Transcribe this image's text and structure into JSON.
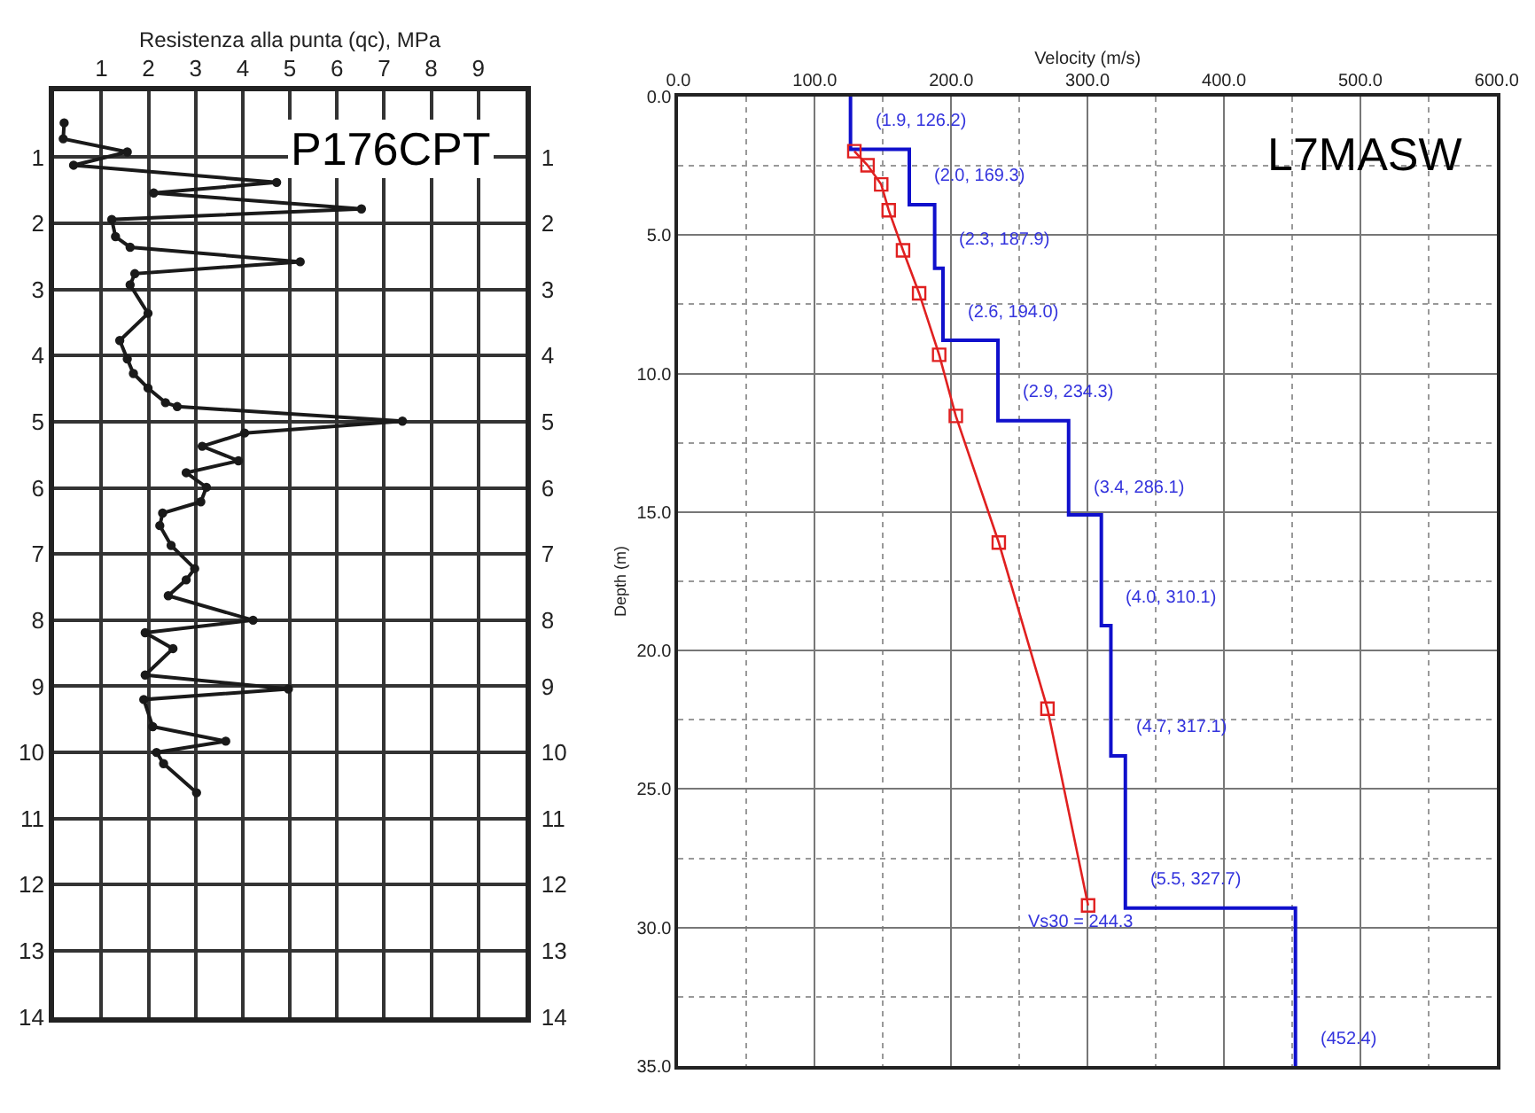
{
  "chart_data": [
    {
      "type": "line",
      "xlabel": "Resistenza alla punta (qc), MPa",
      "xlim": [
        0,
        10
      ],
      "xticks": [
        1,
        2,
        3,
        4,
        5,
        6,
        7,
        8,
        9
      ],
      "ylim": [
        14,
        0
      ],
      "yticks": [
        1,
        2,
        3,
        4,
        5,
        6,
        7,
        8,
        9,
        10,
        11,
        12,
        13,
        14
      ],
      "y2lim": [
        14,
        0
      ],
      "y2ticks": [
        1,
        2,
        3,
        4,
        5,
        6,
        7,
        8,
        9,
        10,
        11,
        12,
        13,
        14
      ],
      "grid": true,
      "annotations": [
        "P176CPT"
      ],
      "series": [
        {
          "color": "#1a1a1a",
          "marker": "circle",
          "line_style": "solid",
          "x": [
            0.21,
            0.19,
            1.55,
            0.41,
            4.72,
            2.11,
            6.52,
            1.22,
            1.3,
            1.61,
            5.22,
            1.71,
            1.61,
            1.99,
            1.39,
            1.55,
            1.68,
            1.99,
            2.36,
            2.61,
            7.39,
            4.04,
            3.14,
            3.91,
            2.8,
            3.23,
            3.11,
            2.3,
            2.24,
            2.48,
            2.98,
            2.8,
            2.42,
            4.22,
            1.93,
            2.52,
            1.93,
            4.97,
            1.9,
            2.09,
            3.64,
            2.17,
            2.32,
            3.02
          ],
          "values": [
            0.48,
            0.72,
            0.92,
            1.12,
            1.38,
            1.54,
            1.78,
            1.94,
            2.2,
            2.36,
            2.58,
            2.76,
            2.93,
            3.36,
            3.77,
            4.05,
            4.27,
            4.49,
            4.71,
            4.77,
            4.99,
            5.17,
            5.37,
            5.59,
            5.77,
            5.99,
            6.21,
            6.38,
            6.57,
            6.87,
            7.22,
            7.39,
            7.63,
            8.0,
            8.19,
            8.43,
            8.83,
            9.04,
            9.2,
            9.61,
            9.83,
            10.0,
            10.17,
            10.61
          ]
        }
      ]
    },
    {
      "type": "line",
      "xlabel": "Velocity (m/s)",
      "ylabel": "Depth (m)",
      "xlim": [
        0,
        600
      ],
      "ylim": [
        35,
        0
      ],
      "grid": true,
      "xticks": [
        {
          "value": 0,
          "label": "0.0"
        },
        {
          "value": 50,
          "label": null
        },
        {
          "value": 100,
          "label": "100.0"
        },
        {
          "value": 150,
          "label": null
        },
        {
          "value": 200,
          "label": "200.0"
        },
        {
          "value": 250,
          "label": null
        },
        {
          "value": 300,
          "label": "300.0"
        },
        {
          "value": 350,
          "label": null
        },
        {
          "value": 400,
          "label": "400.0"
        },
        {
          "value": 450,
          "label": null
        },
        {
          "value": 500,
          "label": "500.0"
        },
        {
          "value": 550,
          "label": null
        },
        {
          "value": 600,
          "label": "600.0"
        }
      ],
      "yticks": [
        {
          "value": 0,
          "label": "0.0"
        },
        {
          "value": 2.5,
          "label": null
        },
        {
          "value": 5,
          "label": "5.0"
        },
        {
          "value": 7.5,
          "label": null
        },
        {
          "value": 10,
          "label": "10.0"
        },
        {
          "value": 12.5,
          "label": null
        },
        {
          "value": 15,
          "label": "15.0"
        },
        {
          "value": 17.5,
          "label": null
        },
        {
          "value": 20,
          "label": "20.0"
        },
        {
          "value": 22.5,
          "label": null
        },
        {
          "value": 25,
          "label": "25.0"
        },
        {
          "value": 27.5,
          "label": null
        },
        {
          "value": 30,
          "label": "30.0"
        },
        {
          "value": 32.5,
          "label": null
        },
        {
          "value": 35,
          "label": "35.0"
        }
      ],
      "annotations": [
        "L7MASW",
        {
          "text": "(1.9, 126.2)",
          "x": 126.2,
          "y": 1.9
        },
        {
          "text": "(2.0, 169.3)",
          "x": 169.3,
          "y": 3.9
        },
        {
          "text": "(2.3, 187.9)",
          "x": 187.9,
          "y": 6.2
        },
        {
          "text": "(2.6, 194.0)",
          "x": 194.0,
          "y": 8.8
        },
        {
          "text": "(2.9, 234.3)",
          "x": 234.3,
          "y": 11.7
        },
        {
          "text": "(3.4, 286.1)",
          "x": 286.1,
          "y": 15.1
        },
        {
          "text": "(4.0, 310.1)",
          "x": 310.1,
          "y": 19.1
        },
        {
          "text": "(4.7, 317.1)",
          "x": 317.1,
          "y": 23.8
        },
        {
          "text": "(5.5, 327.7)",
          "x": 327.7,
          "y": 29.3
        },
        {
          "text": "Vs30 = 244.3",
          "x": 300.4,
          "y": 29.2
        },
        {
          "text": "(452.4)",
          "x": 452.4,
          "y": 35
        }
      ],
      "series": [
        {
          "color": "#1010cc",
          "marker": "none",
          "line_style": "solid",
          "x": [
            126.2,
            126.2,
            169.3,
            169.3,
            187.9,
            187.9,
            194.0,
            194.0,
            234.3,
            234.3,
            286.1,
            286.1,
            310.1,
            310.1,
            317.1,
            317.1,
            327.7,
            327.7,
            452.4,
            452.4
          ],
          "values": [
            0,
            1.9,
            1.9,
            3.9,
            3.9,
            6.2,
            6.2,
            8.8,
            8.8,
            11.7,
            11.7,
            15.1,
            15.1,
            19.1,
            19.1,
            23.8,
            23.8,
            29.3,
            29.3,
            35
          ]
        },
        {
          "color": "#e02020",
          "marker": "square",
          "line_style": "solid",
          "x": [
            129,
            138.7,
            148.7,
            154.2,
            164.7,
            176.5,
            191.2,
            203.4,
            234.9,
            270.6,
            300.4
          ],
          "values": [
            1.97,
            2.48,
            3.17,
            4.1,
            5.55,
            7.1,
            9.32,
            11.53,
            16.1,
            22.1,
            29.2
          ]
        }
      ]
    }
  ]
}
